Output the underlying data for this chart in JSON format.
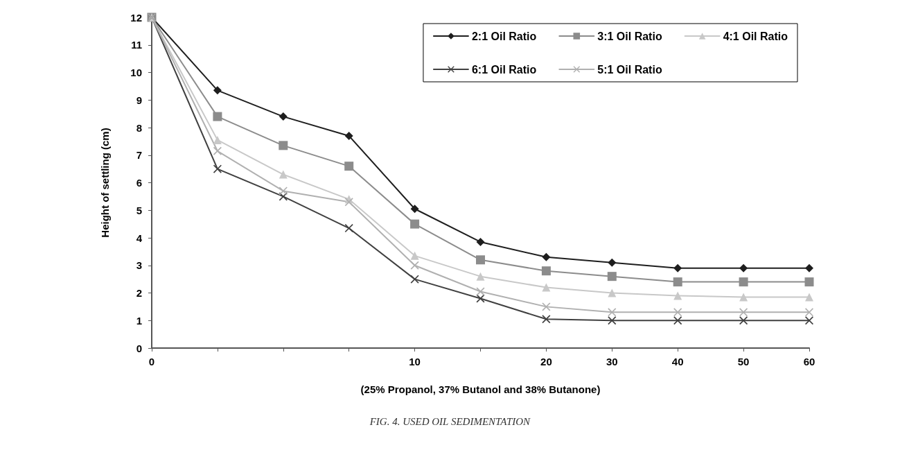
{
  "chart_data": {
    "type": "line",
    "xlabel": "(25% Propanol, 37% Butanol and 38% Butanone)",
    "ylabel": "Height of settling (cm)",
    "annotations": [
      "FIG. 4. USED OIL SEDIMENTATION"
    ],
    "categories": [
      "0",
      null,
      null,
      null,
      "10",
      null,
      "20",
      "30",
      "40",
      "50",
      "60"
    ],
    "ylim": [
      0,
      12
    ],
    "yticks": [
      0,
      1,
      2,
      3,
      4,
      5,
      6,
      7,
      8,
      9,
      10,
      11,
      12
    ],
    "grid": false,
    "legend": "top right",
    "series": [
      {
        "name": "2:1 Oil Ratio",
        "color": "#1e1e1e",
        "marker": "diamond",
        "values": [
          12,
          9.35,
          8.4,
          7.7,
          5.05,
          3.85,
          3.3,
          3.1,
          2.9,
          2.9,
          2.9
        ]
      },
      {
        "name": "3:1 Oil Ratio",
        "color": "#8c8c8c",
        "marker": "square",
        "values": [
          12,
          8.4,
          7.35,
          6.6,
          4.5,
          3.2,
          2.8,
          2.6,
          2.4,
          2.4,
          2.4
        ]
      },
      {
        "name": "4:1 Oil Ratio",
        "color": "#c8c8c8",
        "marker": "triangle",
        "values": [
          12,
          7.55,
          6.3,
          5.4,
          3.35,
          2.6,
          2.2,
          2.0,
          1.9,
          1.85,
          1.85
        ]
      },
      {
        "name": "6:1 Oil Ratio",
        "color": "#404040",
        "marker": "cross",
        "values": [
          12,
          6.5,
          5.5,
          4.35,
          2.5,
          1.8,
          1.05,
          1,
          1,
          1,
          1
        ]
      },
      {
        "name": "5:1 Oil Ratio",
        "color": "#b0b0b0",
        "marker": "cross",
        "values": [
          12,
          7.15,
          5.7,
          5.3,
          3.0,
          2.05,
          1.5,
          1.3,
          1.3,
          1.3,
          1.3
        ]
      }
    ]
  }
}
